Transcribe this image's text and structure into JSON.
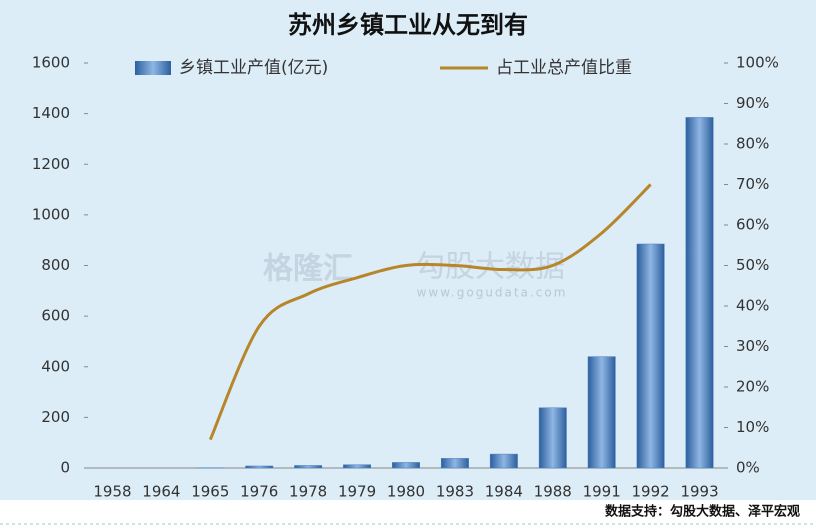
{
  "chart_data": {
    "type": "bar_line",
    "title": "苏州乡镇工业从无到有",
    "categories": [
      "1958",
      "1964",
      "1965",
      "1976",
      "1978",
      "1979",
      "1980",
      "1983",
      "1984",
      "1988",
      "1991",
      "1992",
      "1993"
    ],
    "series": [
      {
        "name": "乡镇工业产值(亿元)",
        "color": "#4a7fbf",
        "type": "bar",
        "axis": "y",
        "values": [
          0,
          0,
          1,
          8,
          10,
          13,
          22,
          38,
          55,
          238,
          440,
          885,
          1385
        ]
      },
      {
        "name": "占工业总产值比重",
        "color": "#b8862a",
        "type": "line",
        "axis": "y2",
        "values": [
          null,
          null,
          7,
          35,
          43,
          47,
          50,
          50,
          49,
          50,
          58,
          70,
          null
        ]
      }
    ],
    "ylim": [
      0,
      1600
    ],
    "yticks": [
      0,
      200,
      400,
      600,
      800,
      1000,
      1200,
      1400,
      1600
    ],
    "y2lim": [
      0,
      100
    ],
    "y2ticks": [
      {
        "value": 0,
        "label": "0%"
      },
      {
        "value": 10,
        "label": "10%"
      },
      {
        "value": 20,
        "label": "20%"
      },
      {
        "value": 30,
        "label": "30%"
      },
      {
        "value": 40,
        "label": "40%"
      },
      {
        "value": 50,
        "label": "50%"
      },
      {
        "value": 60,
        "label": "60%"
      },
      {
        "value": 70,
        "label": "70%"
      },
      {
        "value": 80,
        "label": "80%"
      },
      {
        "value": 90,
        "label": "90%"
      },
      {
        "value": 100,
        "label": "100%"
      }
    ],
    "legend": "top",
    "watermark": [
      "格隆汇",
      "勾股大数据",
      "www.gogudata.com"
    ],
    "source": "数据支持：勾股大数据、泽平宏观"
  }
}
